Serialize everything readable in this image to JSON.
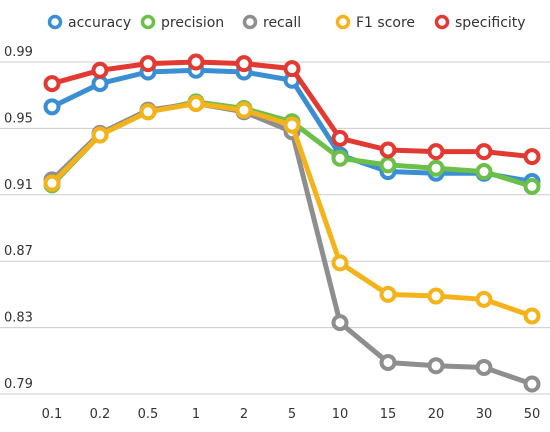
{
  "chart_data": {
    "type": "line",
    "categories": [
      "0.1",
      "0.2",
      "0.5",
      "1",
      "2",
      "5",
      "10",
      "15",
      "20",
      "30",
      "50"
    ],
    "ylim": [
      0.79,
      0.99
    ],
    "yticks": [
      0.79,
      0.83,
      0.87,
      0.91,
      0.95,
      0.99
    ],
    "ytick_labels": [
      "0.79",
      "0.83",
      "0.87",
      "0.91",
      "0.95",
      "0.99"
    ],
    "grid": true,
    "legend_position": "top",
    "series": [
      {
        "name": "accuracy",
        "color": "#3a8fd4",
        "values": [
          0.963,
          0.977,
          0.984,
          0.985,
          0.984,
          0.979,
          0.934,
          0.924,
          0.923,
          0.923,
          0.918
        ]
      },
      {
        "name": "precision",
        "color": "#6cc04a",
        "values": [
          0.916,
          0.946,
          0.96,
          0.966,
          0.962,
          0.954,
          0.932,
          0.928,
          0.926,
          0.924,
          0.915
        ]
      },
      {
        "name": "recall",
        "color": "#8e8e8e",
        "values": [
          0.919,
          0.947,
          0.961,
          0.965,
          0.96,
          0.948,
          0.833,
          0.809,
          0.807,
          0.806,
          0.796
        ]
      },
      {
        "name": "F1 score",
        "color": "#f5b31b",
        "values": [
          0.917,
          0.946,
          0.96,
          0.965,
          0.961,
          0.952,
          0.869,
          0.85,
          0.849,
          0.847,
          0.837
        ]
      },
      {
        "name": "specificity",
        "color": "#e23a33",
        "values": [
          0.977,
          0.985,
          0.989,
          0.99,
          0.989,
          0.986,
          0.944,
          0.937,
          0.936,
          0.936,
          0.933
        ]
      }
    ]
  }
}
